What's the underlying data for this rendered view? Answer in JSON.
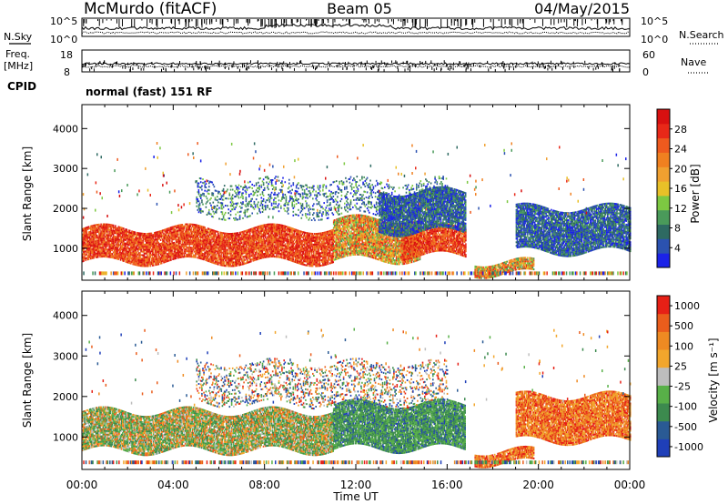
{
  "header": {
    "station": "McMurdo (fitACF)",
    "beam": "Beam 05",
    "date": "04/May/2015",
    "cpid_label": "CPID",
    "cpid_value": "normal (fast) 151 RF"
  },
  "summary_panels": {
    "noise": {
      "left_label": "N.Sky",
      "right_label": "N.Search",
      "left_ticks": [
        "10^5",
        "10^0"
      ],
      "right_ticks": [
        "10^5",
        "10^0"
      ]
    },
    "freq": {
      "left_label_line1": "Freq.",
      "left_label_line2": "[MHz]",
      "left_ticks": [
        "18",
        "8"
      ],
      "right_label": "Nave",
      "right_ticks": [
        "60",
        "0"
      ]
    }
  },
  "chart_data": [
    {
      "type": "heatmap",
      "name": "power",
      "ylabel": "Slant Range [km]",
      "yticks": [
        1000,
        2000,
        3000,
        4000
      ],
      "ylim": [
        200,
        4600
      ],
      "xlim_hours": [
        0,
        24
      ],
      "colorbar": {
        "label": "Power [dB]",
        "range": [
          0,
          32
        ],
        "ticks": [
          "4",
          "8",
          "12",
          "16",
          "20",
          "24",
          "28"
        ],
        "colors": [
          "#1b22e8",
          "#2b52b0",
          "#2e6a62",
          "#4a9a5a",
          "#7dc842",
          "#e8c028",
          "#f0a030",
          "#f08020",
          "#ee5a1e",
          "#e82818",
          "#d81010"
        ]
      },
      "echo_regions": [
        {
          "t0": 0.0,
          "t1": 11.0,
          "r0": 650,
          "r1": 1500,
          "level": "high"
        },
        {
          "t0": 11.0,
          "t1": 14.8,
          "r0": 700,
          "r1": 1700,
          "level": "medium"
        },
        {
          "t0": 14.0,
          "t1": 16.8,
          "r0": 800,
          "r1": 1500,
          "level": "high"
        },
        {
          "t0": 5.0,
          "t1": 16.0,
          "r0": 1800,
          "r1": 2700,
          "level": "scattered"
        },
        {
          "t0": 13.0,
          "t1": 16.8,
          "r0": 1400,
          "r1": 2400,
          "level": "low"
        },
        {
          "t0": 17.2,
          "t1": 19.8,
          "r0": 350,
          "r1": 650,
          "level": "medium"
        },
        {
          "t0": 19.0,
          "t1": 24.0,
          "r0": 900,
          "r1": 2000,
          "level": "low"
        }
      ]
    },
    {
      "type": "heatmap",
      "name": "velocity",
      "ylabel": "Slant Range [km]",
      "yticks": [
        1000,
        2000,
        3000,
        4000
      ],
      "ylim": [
        200,
        4600
      ],
      "xlim_hours": [
        0,
        24
      ],
      "xlabel": "Time UT",
      "xticks": [
        "00:00",
        "04:00",
        "08:00",
        "12:00",
        "16:00",
        "20:00",
        "00:00"
      ],
      "colorbar": {
        "label": "Velocity [m s⁻¹]",
        "range": [
          -1500,
          1500
        ],
        "ticks": [
          "1000",
          "500",
          "100",
          "25",
          "-25",
          "-100",
          "-500",
          "-1000"
        ],
        "colors": [
          "#1f3fb8",
          "#2a5a94",
          "#3c8a4e",
          "#58b048",
          "#bdbdbd",
          "#f2a62c",
          "#ee8a22",
          "#ea5d1c",
          "#e62016"
        ]
      },
      "echo_regions": [
        {
          "t0": 0.0,
          "t1": 11.0,
          "r0": 650,
          "r1": 1600,
          "level": "mixed"
        },
        {
          "t0": 11.0,
          "t1": 16.8,
          "r0": 700,
          "r1": 1800,
          "level": "toward"
        },
        {
          "t0": 5.0,
          "t1": 16.0,
          "r0": 1800,
          "r1": 2800,
          "level": "scattered"
        },
        {
          "t0": 17.2,
          "t1": 19.8,
          "r0": 350,
          "r1": 650,
          "level": "away"
        },
        {
          "t0": 19.0,
          "t1": 24.0,
          "r0": 900,
          "r1": 2000,
          "level": "away"
        }
      ]
    }
  ]
}
